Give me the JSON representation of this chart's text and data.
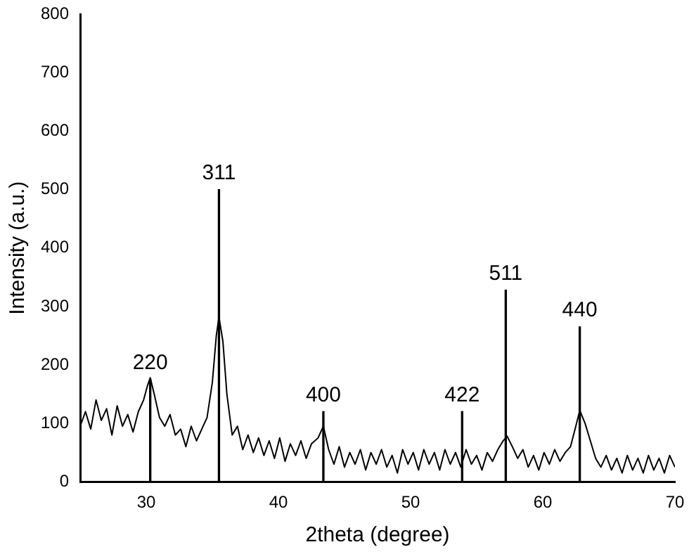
{
  "chart_data": {
    "type": "line",
    "xlabel": "2theta (degree)",
    "ylabel": "Intensity (a.u.)",
    "xlim": [
      25,
      70
    ],
    "ylim": [
      0,
      800
    ],
    "xticks": [
      30,
      40,
      50,
      60,
      70
    ],
    "yticks": [
      0,
      100,
      200,
      300,
      400,
      500,
      600,
      700,
      800
    ],
    "marker": "none",
    "line_style": "solid",
    "series": [
      {
        "color": "#000000",
        "x": [
          25,
          25.4,
          25.8,
          26.2,
          26.6,
          27,
          27.4,
          27.8,
          28.2,
          28.6,
          29,
          29.4,
          29.8,
          30.1,
          30.3,
          30.6,
          31,
          31.4,
          31.8,
          32.2,
          32.6,
          33,
          33.4,
          33.8,
          34.2,
          34.6,
          35,
          35.3,
          35.5,
          35.8,
          36.1,
          36.5,
          36.9,
          37.3,
          37.7,
          38.1,
          38.5,
          38.9,
          39.3,
          39.7,
          40.1,
          40.5,
          40.9,
          41.3,
          41.7,
          42.1,
          42.5,
          43,
          43.4,
          43.8,
          44.2,
          44.6,
          45,
          45.4,
          45.8,
          46.2,
          46.6,
          47,
          47.4,
          47.8,
          48.2,
          48.6,
          49,
          49.4,
          49.8,
          50.2,
          50.6,
          51,
          51.4,
          51.8,
          52.2,
          52.6,
          53,
          53.4,
          53.8,
          54.2,
          54.6,
          55,
          55.4,
          55.8,
          56.2,
          56.6,
          57,
          57.3,
          57.7,
          58.1,
          58.5,
          58.9,
          59.3,
          59.7,
          60.1,
          60.5,
          60.9,
          61.3,
          61.7,
          62.1,
          62.5,
          62.8,
          63.2,
          63.6,
          64,
          64.4,
          64.8,
          65.2,
          65.6,
          66,
          66.4,
          66.8,
          67.2,
          67.6,
          68,
          68.4,
          68.8,
          69.2,
          69.6,
          70
        ],
        "values": [
          95,
          120,
          90,
          140,
          105,
          125,
          80,
          130,
          95,
          115,
          85,
          120,
          140,
          165,
          178,
          150,
          110,
          95,
          115,
          80,
          90,
          60,
          95,
          70,
          90,
          110,
          170,
          250,
          282,
          240,
          150,
          80,
          95,
          55,
          80,
          50,
          75,
          45,
          70,
          40,
          75,
          35,
          65,
          45,
          70,
          40,
          65,
          75,
          95,
          55,
          30,
          60,
          25,
          50,
          30,
          55,
          20,
          50,
          30,
          55,
          25,
          45,
          15,
          55,
          30,
          50,
          20,
          55,
          30,
          50,
          20,
          55,
          30,
          50,
          25,
          55,
          30,
          45,
          20,
          50,
          35,
          55,
          70,
          78,
          60,
          40,
          55,
          25,
          45,
          20,
          50,
          30,
          55,
          35,
          50,
          60,
          95,
          122,
          100,
          70,
          40,
          25,
          45,
          20,
          40,
          15,
          45,
          20,
          40,
          15,
          45,
          20,
          40,
          15,
          45,
          25
        ]
      },
      {
        "type": "bar",
        "color": "#000000",
        "x": [
          30.3,
          35.5,
          43.4,
          53.9,
          57.2,
          62.8
        ],
        "values": [
          175,
          500,
          120,
          120,
          328,
          265
        ]
      }
    ],
    "annotations": [
      {
        "text": "220",
        "x": 30.3,
        "y": 175
      },
      {
        "text": "311",
        "x": 35.5,
        "y": 500
      },
      {
        "text": "400",
        "x": 43.4,
        "y": 120
      },
      {
        "text": "422",
        "x": 53.9,
        "y": 120
      },
      {
        "text": "511",
        "x": 57.2,
        "y": 328
      },
      {
        "text": "440",
        "x": 62.8,
        "y": 265
      }
    ]
  }
}
